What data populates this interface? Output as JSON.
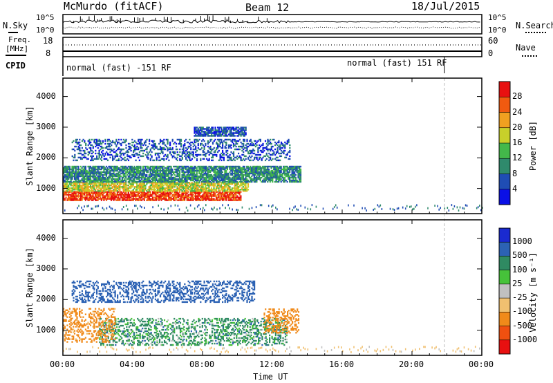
{
  "header": {
    "station": "McMurdo (fitACF)",
    "beam": "Beam 12",
    "date": "18/Jul/2015"
  },
  "sky_panel": {
    "left_label": "N.Sky",
    "left_ticks": [
      "10^5",
      "10^0"
    ],
    "right_ticks": [
      "10^5",
      "10^0"
    ],
    "right_label": "N.Search"
  },
  "freq_panel": {
    "left_label_1": "Freq.",
    "left_label_2": "[MHz]",
    "left_ticks": [
      "18",
      "8"
    ],
    "right_ticks": [
      "60",
      "0"
    ],
    "right_label": "Nave"
  },
  "cpid": {
    "label": "CPID",
    "mode1": "normal (fast) -151 RF",
    "mode2": "normal (fast) 151 RF"
  },
  "chart_data": [
    {
      "type": "heatmap",
      "quantity": "Power",
      "ylabel": "Slant Range [km]",
      "xlabel": "Time UT",
      "x_ticks": [
        "00:00",
        "04:00",
        "08:00",
        "12:00",
        "16:00",
        "20:00",
        "00:00"
      ],
      "xlim_hours": [
        0,
        24
      ],
      "y_ticks": [
        1000,
        2000,
        3000,
        4000
      ],
      "ylim": [
        180,
        4600
      ],
      "colorbar": {
        "label": "Power [dB]",
        "ticks": [
          "4",
          "8",
          "12",
          "16",
          "20",
          "24",
          "28"
        ],
        "colors": [
          "#0a10e6",
          "#1f4db4",
          "#2f8a6c",
          "#43b84a",
          "#c8d02a",
          "#f0a020",
          "#f05a10",
          "#e81010"
        ]
      },
      "regions": [
        {
          "t_start": 0.0,
          "t_end": 10.2,
          "range_low": 600,
          "range_high": 900,
          "value_db": 28
        },
        {
          "t_start": 0.0,
          "t_end": 10.6,
          "range_low": 900,
          "range_high": 1200,
          "value_db": 18
        },
        {
          "t_start": 0.0,
          "t_end": 13.6,
          "range_low": 1200,
          "range_high": 1700,
          "value_db": 10
        },
        {
          "t_start": 0.5,
          "t_end": 13.0,
          "range_low": 1900,
          "range_high": 2600,
          "value_db": 6
        },
        {
          "t_start": 7.5,
          "t_end": 10.5,
          "range_low": 2700,
          "range_high": 3000,
          "value_db": 6
        }
      ]
    },
    {
      "type": "heatmap",
      "quantity": "Velocity",
      "ylabel": "Slant Range [km]",
      "xlabel": "Time UT",
      "x_ticks": [
        "00:00",
        "04:00",
        "08:00",
        "12:00",
        "16:00",
        "20:00",
        "00:00"
      ],
      "xlim_hours": [
        0,
        24
      ],
      "y_ticks": [
        1000,
        2000,
        3000,
        4000
      ],
      "ylim": [
        180,
        4600
      ],
      "colorbar": {
        "label": "Velocity [m s⁻¹]",
        "ticks": [
          "1000",
          "500",
          "100",
          "25",
          "-25",
          "-100",
          "-500",
          "-1000"
        ],
        "colors": [
          "#1a2ad0",
          "#2c62b4",
          "#2f8a62",
          "#46c23a",
          "#c0c0c0",
          "#f0c070",
          "#f08a1a",
          "#f05010",
          "#e81010"
        ]
      },
      "regions": [
        {
          "t_start": 2.0,
          "t_end": 12.8,
          "range_low": 500,
          "range_high": 1400,
          "value_ms": 50
        },
        {
          "t_start": 0.0,
          "t_end": 3.0,
          "range_low": 600,
          "range_high": 1700,
          "value_ms": -150
        },
        {
          "t_start": 11.5,
          "t_end": 13.5,
          "range_low": 900,
          "range_high": 1700,
          "value_ms": -200
        },
        {
          "t_start": 0.5,
          "t_end": 11.0,
          "range_low": 1900,
          "range_high": 2600,
          "value_ms": 400
        }
      ]
    }
  ],
  "time_axis_label": "Time UT"
}
